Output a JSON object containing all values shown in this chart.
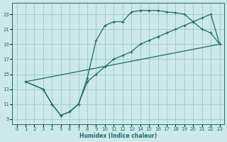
{
  "bg_color": "#cce8e8",
  "grid_color": "#9dc8c8",
  "line_color": "#1a6b6b",
  "xlabel": "Humidex (Indice chaleur)",
  "xlim": [
    -0.5,
    23.5
  ],
  "ylim": [
    8.3,
    24.5
  ],
  "xticks": [
    0,
    1,
    2,
    3,
    4,
    5,
    6,
    7,
    8,
    9,
    10,
    11,
    12,
    13,
    14,
    15,
    16,
    17,
    18,
    19,
    20,
    21,
    22,
    23
  ],
  "yticks": [
    9,
    11,
    13,
    15,
    17,
    19,
    21,
    23
  ],
  "curve1_x": [
    1,
    3,
    4,
    5,
    6,
    7,
    8,
    9,
    10,
    11,
    12,
    13,
    14,
    15,
    16,
    17,
    18,
    19,
    20,
    21,
    22,
    23
  ],
  "curve1_y": [
    14,
    13,
    11,
    9.5,
    10,
    11,
    14.5,
    19.5,
    21.5,
    22,
    22,
    23.3,
    23.5,
    23.5,
    23.5,
    23.3,
    23.2,
    23,
    22,
    21,
    20.5,
    19
  ],
  "curve2_x": [
    1,
    3,
    4,
    5,
    6,
    7,
    8,
    9,
    10,
    11,
    12,
    13,
    14,
    15,
    16,
    17,
    18,
    19,
    20,
    21,
    22,
    23
  ],
  "curve2_y": [
    14,
    13,
    11,
    9.5,
    10,
    11,
    14,
    15,
    16,
    17,
    17.5,
    18,
    19,
    19.5,
    20,
    20.5,
    21,
    21.5,
    22,
    22.5,
    23,
    19
  ],
  "line3_x": [
    1,
    23
  ],
  "line3_y": [
    14,
    19
  ]
}
